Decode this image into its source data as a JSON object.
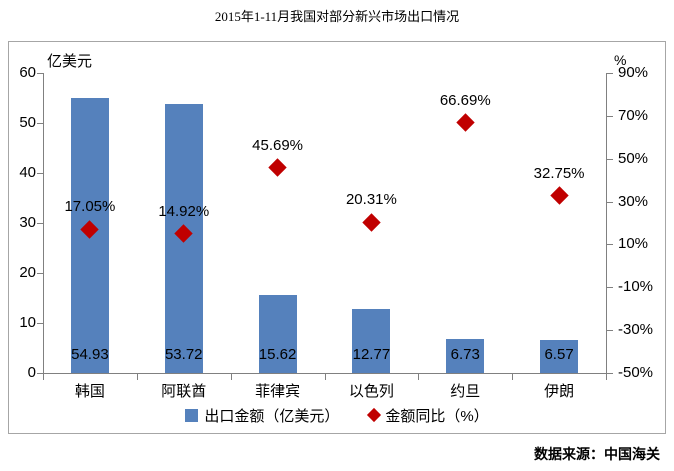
{
  "title": "2015年1-11月我国对部分新兴市场出口情况",
  "source": "数据来源：中国海关",
  "colors": {
    "bar": "#5581BC",
    "diamond": "#C00000",
    "axis": "#808080",
    "border": "#A6A6A6",
    "text": "#000000"
  },
  "chart_data": {
    "type": "bar",
    "subtype": "combo: bars on left axis + red diamond markers on right axis",
    "title": "2015年1-11月我国对部分新兴市场出口情况",
    "categories": [
      "韩国",
      "阿联酋",
      "菲律宾",
      "以色列",
      "约旦",
      "伊朗"
    ],
    "series": [
      {
        "name": "出口金额（亿美元）",
        "legend_label": "出口金额（亿美元）",
        "type": "bar",
        "axis": "left",
        "values": [
          54.93,
          53.72,
          15.62,
          12.77,
          6.73,
          6.57
        ],
        "data_labels": [
          "54.93",
          "53.72",
          "15.62",
          "12.77",
          "6.73",
          "6.57"
        ],
        "color": "#5581BC"
      },
      {
        "name": "金额同比（%）",
        "legend_label": "金额同比（%）",
        "type": "scatter",
        "marker": "diamond",
        "axis": "right",
        "values": [
          17.05,
          14.92,
          45.69,
          20.31,
          66.69,
          32.75
        ],
        "data_labels": [
          "17.05%",
          "14.92%",
          "45.69%",
          "20.31%",
          "66.69%",
          "32.75%"
        ],
        "color": "#C00000"
      }
    ],
    "left_axis": {
      "title": "亿美元",
      "min": 0,
      "max": 60,
      "step": 10,
      "ticks": [
        "0",
        "10",
        "20",
        "30",
        "40",
        "50",
        "60"
      ]
    },
    "right_axis": {
      "title": "%",
      "min": -50,
      "max": 90,
      "step": 20,
      "ticks": [
        "-50%",
        "-30%",
        "-10%",
        "10%",
        "30%",
        "50%",
        "70%",
        "90%"
      ]
    },
    "grid": false,
    "legend_position": "bottom"
  }
}
